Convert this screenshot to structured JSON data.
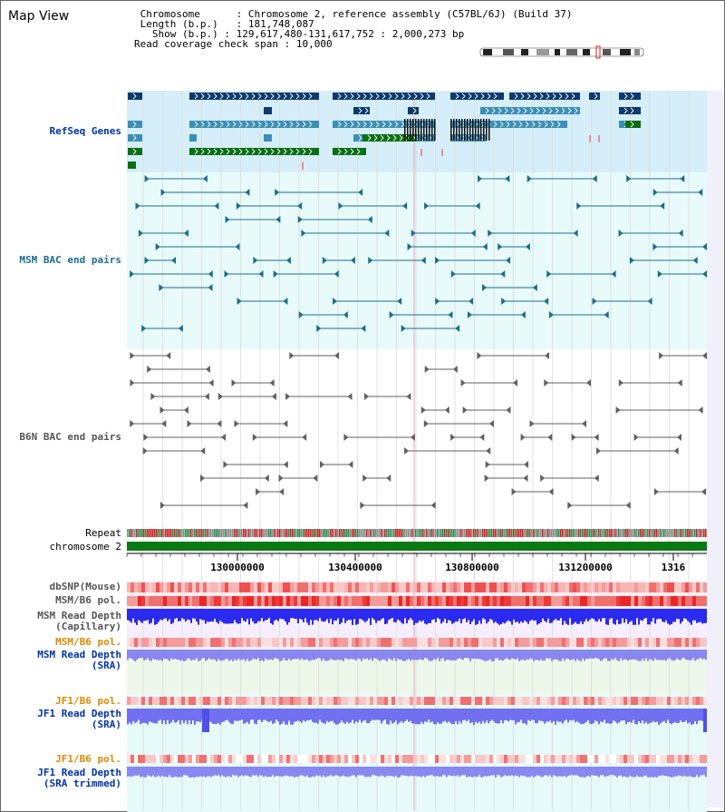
{
  "app": {
    "title": "Map View"
  },
  "info": {
    "chromosome_label": "Chromosome",
    "chromosome_value": "Chromosome 2, reference assembly (C57BL/6J) (Build 37)",
    "length_label": "Length (b.p.)",
    "length_value": "181,748,087",
    "show_label": "Show (b.p.)",
    "show_value": "129,617,480-131,617,752 : 2,000,273 bp",
    "coverage_label": "Read coverage check span",
    "coverage_value": "10,000"
  },
  "tracks": {
    "refseq": "RefSeq Genes",
    "msm_bac": "MSM BAC end pairs",
    "b6n_bac": "B6N BAC end pairs",
    "repeat": "Repeat",
    "chromosome": "chromosome 2",
    "dbsnp": "dbSNP(Mouse)",
    "msm_b6_pol_1": "MSM/B6 pol.",
    "msm_read_depth_cap_1": "MSM Read Depth",
    "msm_read_depth_cap_2": "(Capillary)",
    "msm_b6_pol_2": "MSM/B6 pol.",
    "msm_read_depth_sra_1": "MSM Read Depth",
    "msm_read_depth_sra_2": "(SRA)",
    "jf1_b6_pol_1": "JF1/B6 pol.",
    "jf1_read_depth_sra_1": "JF1 Read Depth",
    "jf1_read_depth_sra_2": "(SRA)",
    "jf1_b6_pol_2": "JF1/B6 pol.",
    "jf1_read_depth_trim_1": "JF1 Read Depth",
    "jf1_read_depth_trim_2": "(SRA trimmed)"
  },
  "axis": {
    "ticks": [
      "130000000",
      "130400000",
      "130800000",
      "131200000",
      "1316"
    ]
  },
  "colors": {
    "refseq_dark": "#0d3a6e",
    "refseq_mid": "#3a8fb8",
    "refseq_green": "#0a6e14",
    "msm_line": "#1a6e8e",
    "b6n_line": "#606060",
    "label_blue": "#0033aa",
    "label_teal": "#1a6e8e",
    "label_gray": "#555555",
    "label_orange": "#e08800"
  }
}
